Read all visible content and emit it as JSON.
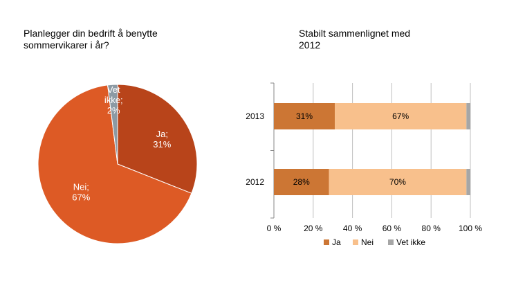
{
  "charts": {
    "pie": {
      "title": "Planlegger din bedrift å benytte\nsommervikarer i år?"
    },
    "bar": {
      "title": "Stabilt sammenlignet med\n2012"
    }
  },
  "chart_data": [
    {
      "type": "pie",
      "title": "Planlegger din bedrift å benytte sommervikarer i år?",
      "slices": [
        {
          "label": "Ja",
          "value": 31,
          "text": "Ja;\n31%",
          "color": "#b8441a"
        },
        {
          "label": "Nei",
          "value": 67,
          "text": "Nei;\n67%",
          "color": "#dd5a25"
        },
        {
          "label": "Vet ikke",
          "value": 2,
          "text": "Vet\nikke;\n2%",
          "color": "#8c9aa4"
        }
      ]
    },
    {
      "type": "bar",
      "orientation": "horizontal-stacked-100",
      "title": "Stabilt sammenlignet med 2012",
      "categories": [
        "2013",
        "2012"
      ],
      "series": [
        {
          "name": "Ja",
          "values": [
            31,
            28
          ],
          "labels": [
            "31%",
            "28%"
          ],
          "color": "#cc7634"
        },
        {
          "name": "Nei",
          "values": [
            67,
            70
          ],
          "labels": [
            "67%",
            "70%"
          ],
          "color": "#f8c08c"
        },
        {
          "name": "Vet ikke",
          "values": [
            2,
            2
          ],
          "labels": [
            "",
            ""
          ],
          "color": "#a6a6a6"
        }
      ],
      "xlim": [
        0,
        100
      ],
      "xticks": [
        "0 %",
        "20 %",
        "40 %",
        "60 %",
        "80 %",
        "100 %"
      ],
      "legend": "bottom",
      "grid": true
    }
  ]
}
